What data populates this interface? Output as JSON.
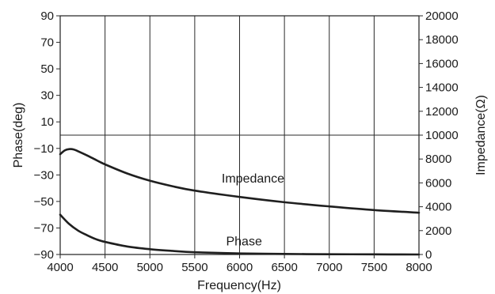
{
  "chart_data": {
    "type": "line",
    "xlabel": "Frequency(Hz)",
    "ylabel_left": "Phase(deg)",
    "ylabel_right": "Impedance(Ω)",
    "x_ticks": [
      "4000",
      "4500",
      "5000",
      "5500",
      "6000",
      "6500",
      "7000",
      "7500",
      "8000"
    ],
    "y_left_ticks": [
      "90",
      "70",
      "50",
      "30",
      "10",
      "−10",
      "−30",
      "−50",
      "−70",
      "−90"
    ],
    "y_right_ticks": [
      "20000",
      "18000",
      "16000",
      "14000",
      "12000",
      "10000",
      "8000",
      "6000",
      "4000",
      "2000",
      "0"
    ],
    "xlim": [
      4000,
      8000
    ],
    "ylim_left": [
      -90,
      90
    ],
    "ylim_right": [
      0,
      20000
    ],
    "grid": "vertical lines at x ticks, horizontal line at 10000 Ω",
    "series": [
      {
        "name": "Impedance",
        "axis": "right",
        "x": [
          4000,
          4050,
          4100,
          4150,
          4200,
          4300,
          4400,
          4500,
          4750,
          5000,
          5250,
          5500,
          6000,
          6500,
          7000,
          7500,
          8000
        ],
        "values": [
          8400,
          8720,
          8830,
          8800,
          8650,
          8300,
          7920,
          7550,
          6780,
          6180,
          5720,
          5350,
          4820,
          4380,
          4030,
          3720,
          3500
        ]
      },
      {
        "name": "Phase",
        "axis": "left",
        "x": [
          4000,
          4100,
          4200,
          4300,
          4400,
          4500,
          4750,
          5000,
          5250,
          5500,
          6000,
          6500,
          7000,
          7500,
          8000
        ],
        "values": [
          -60,
          -67,
          -72,
          -75.5,
          -78.5,
          -80.5,
          -84,
          -86,
          -87.3,
          -88.3,
          -89.2,
          -89.6,
          -89.8,
          -89.9,
          -90
        ]
      }
    ],
    "annotations": [
      {
        "text": "Impedance",
        "series": "Impedance"
      },
      {
        "text": "Phase",
        "series": "Phase"
      }
    ]
  },
  "style": {
    "line_color": "#1f1f1f",
    "grid_color": "#2a2a2a"
  }
}
